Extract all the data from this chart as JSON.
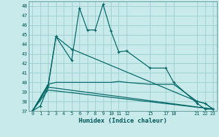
{
  "xlabel": "Humidex (Indice chaleur)",
  "bg_color": "#c8eaea",
  "grid_color": "#99cccc",
  "line_color": "#006666",
  "ylim": [
    37,
    48.5
  ],
  "xlim": [
    -0.5,
    23.5
  ],
  "yticks": [
    37,
    38,
    39,
    40,
    41,
    42,
    43,
    44,
    45,
    46,
    47,
    48
  ],
  "xticks": [
    0,
    1,
    2,
    3,
    4,
    5,
    6,
    7,
    8,
    9,
    10,
    11,
    12,
    15,
    17,
    18,
    21,
    22,
    23
  ],
  "xtick_labels": [
    "0",
    "1",
    "2",
    "3",
    "4",
    "5",
    "6",
    "7",
    "8",
    "9",
    "10",
    "11",
    "12",
    "15",
    "17",
    "18",
    "21",
    "22",
    "23"
  ],
  "line1": {
    "x": [
      0,
      1,
      2,
      3,
      5,
      6,
      7,
      8,
      9,
      10,
      11,
      12,
      15,
      17,
      18,
      21,
      22,
      23
    ],
    "y": [
      37,
      37.5,
      39.5,
      44.8,
      42.3,
      47.8,
      45.5,
      45.5,
      48.2,
      45.4,
      43.2,
      43.3,
      41.5,
      41.5,
      40.0,
      37.8,
      37.2,
      37.2
    ],
    "markers": true
  },
  "line2": {
    "x": [
      0,
      2,
      3,
      5,
      21,
      22,
      23
    ],
    "y": [
      37,
      39.7,
      44.8,
      43.5,
      38.0,
      37.8,
      37.2
    ],
    "markers": true
  },
  "line3": {
    "x": [
      0,
      2,
      3,
      10,
      11,
      12,
      15,
      18,
      21,
      22,
      23
    ],
    "y": [
      37,
      39.8,
      40.0,
      40.0,
      40.1,
      40.0,
      39.8,
      39.8,
      38.0,
      37.8,
      37.2
    ],
    "markers": false
  },
  "line4": {
    "x": [
      0,
      2,
      23
    ],
    "y": [
      37,
      39.5,
      37.2
    ],
    "markers": false
  },
  "line5": {
    "x": [
      0,
      2,
      23
    ],
    "y": [
      37,
      39.2,
      37.2
    ],
    "markers": false
  }
}
